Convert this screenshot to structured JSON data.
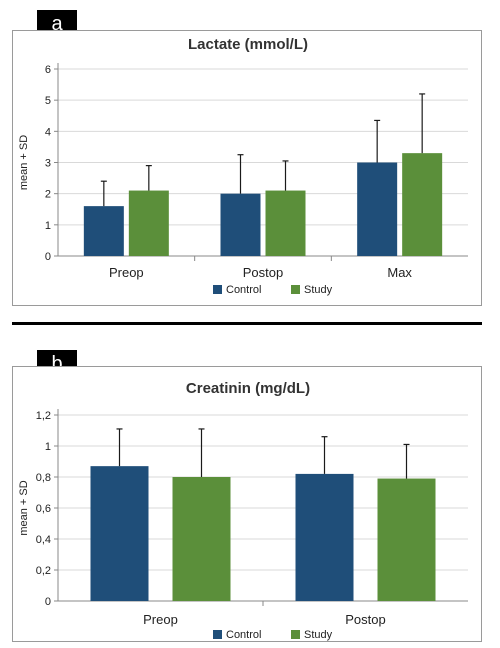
{
  "panels": [
    {
      "label": "a"
    },
    {
      "label": "b"
    }
  ],
  "colors": {
    "Control": "#1f4e79",
    "Study": "#5b8f3a",
    "error": "#1a1a1a",
    "grid": "#d9d9d9"
  },
  "chart_data": [
    {
      "type": "bar",
      "title": "Lactate (mmol/L)",
      "xlabel": "",
      "ylabel": "mean + SD",
      "categories": [
        "Preop",
        "Postop",
        "Max"
      ],
      "series": [
        {
          "name": "Control",
          "values": [
            1.6,
            2.0,
            3.0
          ],
          "sd": [
            0.8,
            1.25,
            1.35
          ]
        },
        {
          "name": "Study",
          "values": [
            2.1,
            2.1,
            3.3
          ],
          "sd": [
            0.8,
            0.95,
            1.9
          ]
        }
      ],
      "ylim": [
        0,
        6
      ],
      "yticks": [
        0,
        1,
        2,
        3,
        4,
        5,
        6
      ],
      "ytick_labels": [
        "0",
        "1",
        "2",
        "3",
        "4",
        "5",
        "6"
      ],
      "grid": true,
      "legend": "bottom"
    },
    {
      "type": "bar",
      "title": "Creatinin (mg/dL)",
      "xlabel": "",
      "ylabel": "mean + SD",
      "categories": [
        "Preop",
        "Postop"
      ],
      "series": [
        {
          "name": "Control",
          "values": [
            0.87,
            0.82
          ],
          "sd": [
            0.24,
            0.24
          ]
        },
        {
          "name": "Study",
          "values": [
            0.8,
            0.79
          ],
          "sd": [
            0.31,
            0.22
          ]
        }
      ],
      "ylim": [
        0,
        1.2
      ],
      "yticks": [
        0,
        0.2,
        0.4,
        0.6,
        0.8,
        1.0,
        1.2
      ],
      "ytick_labels": [
        "0",
        "0,2",
        "0,4",
        "0,6",
        "0,8",
        "1",
        "1,2"
      ],
      "grid": true,
      "legend": "bottom"
    }
  ]
}
